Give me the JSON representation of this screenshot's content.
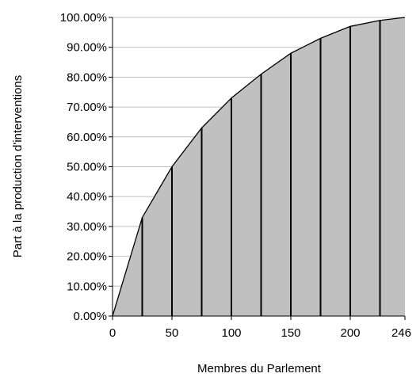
{
  "chart_data": {
    "type": "area",
    "xlabel": "Membres du Parlement",
    "ylabel": "Part à la production d'interventions",
    "x_ticks": [
      0,
      50,
      100,
      150,
      200,
      246
    ],
    "x_tick_labels": [
      "0",
      "50",
      "100",
      "150",
      "200",
      "246"
    ],
    "y_ticks": [
      0,
      10,
      20,
      30,
      40,
      50,
      60,
      70,
      80,
      90,
      100
    ],
    "y_tick_labels": [
      "0.00%",
      "10.00%",
      "20.00%",
      "30.00%",
      "40.00%",
      "50.00%",
      "60.00%",
      "70.00%",
      "80.00%",
      "90.00%",
      "100.00%"
    ],
    "xlim": [
      0,
      246
    ],
    "ylim": [
      0,
      100
    ],
    "grid": "horizontal",
    "legend": "none",
    "fill_color": "#c0c0c0",
    "line_color": "#000000",
    "grid_color": "#c0c0c0",
    "x": [
      0,
      25,
      50,
      75,
      100,
      125,
      150,
      175,
      200,
      225,
      246
    ],
    "y": [
      0,
      33,
      50,
      63,
      73,
      81,
      88,
      93,
      97,
      99,
      100
    ]
  }
}
